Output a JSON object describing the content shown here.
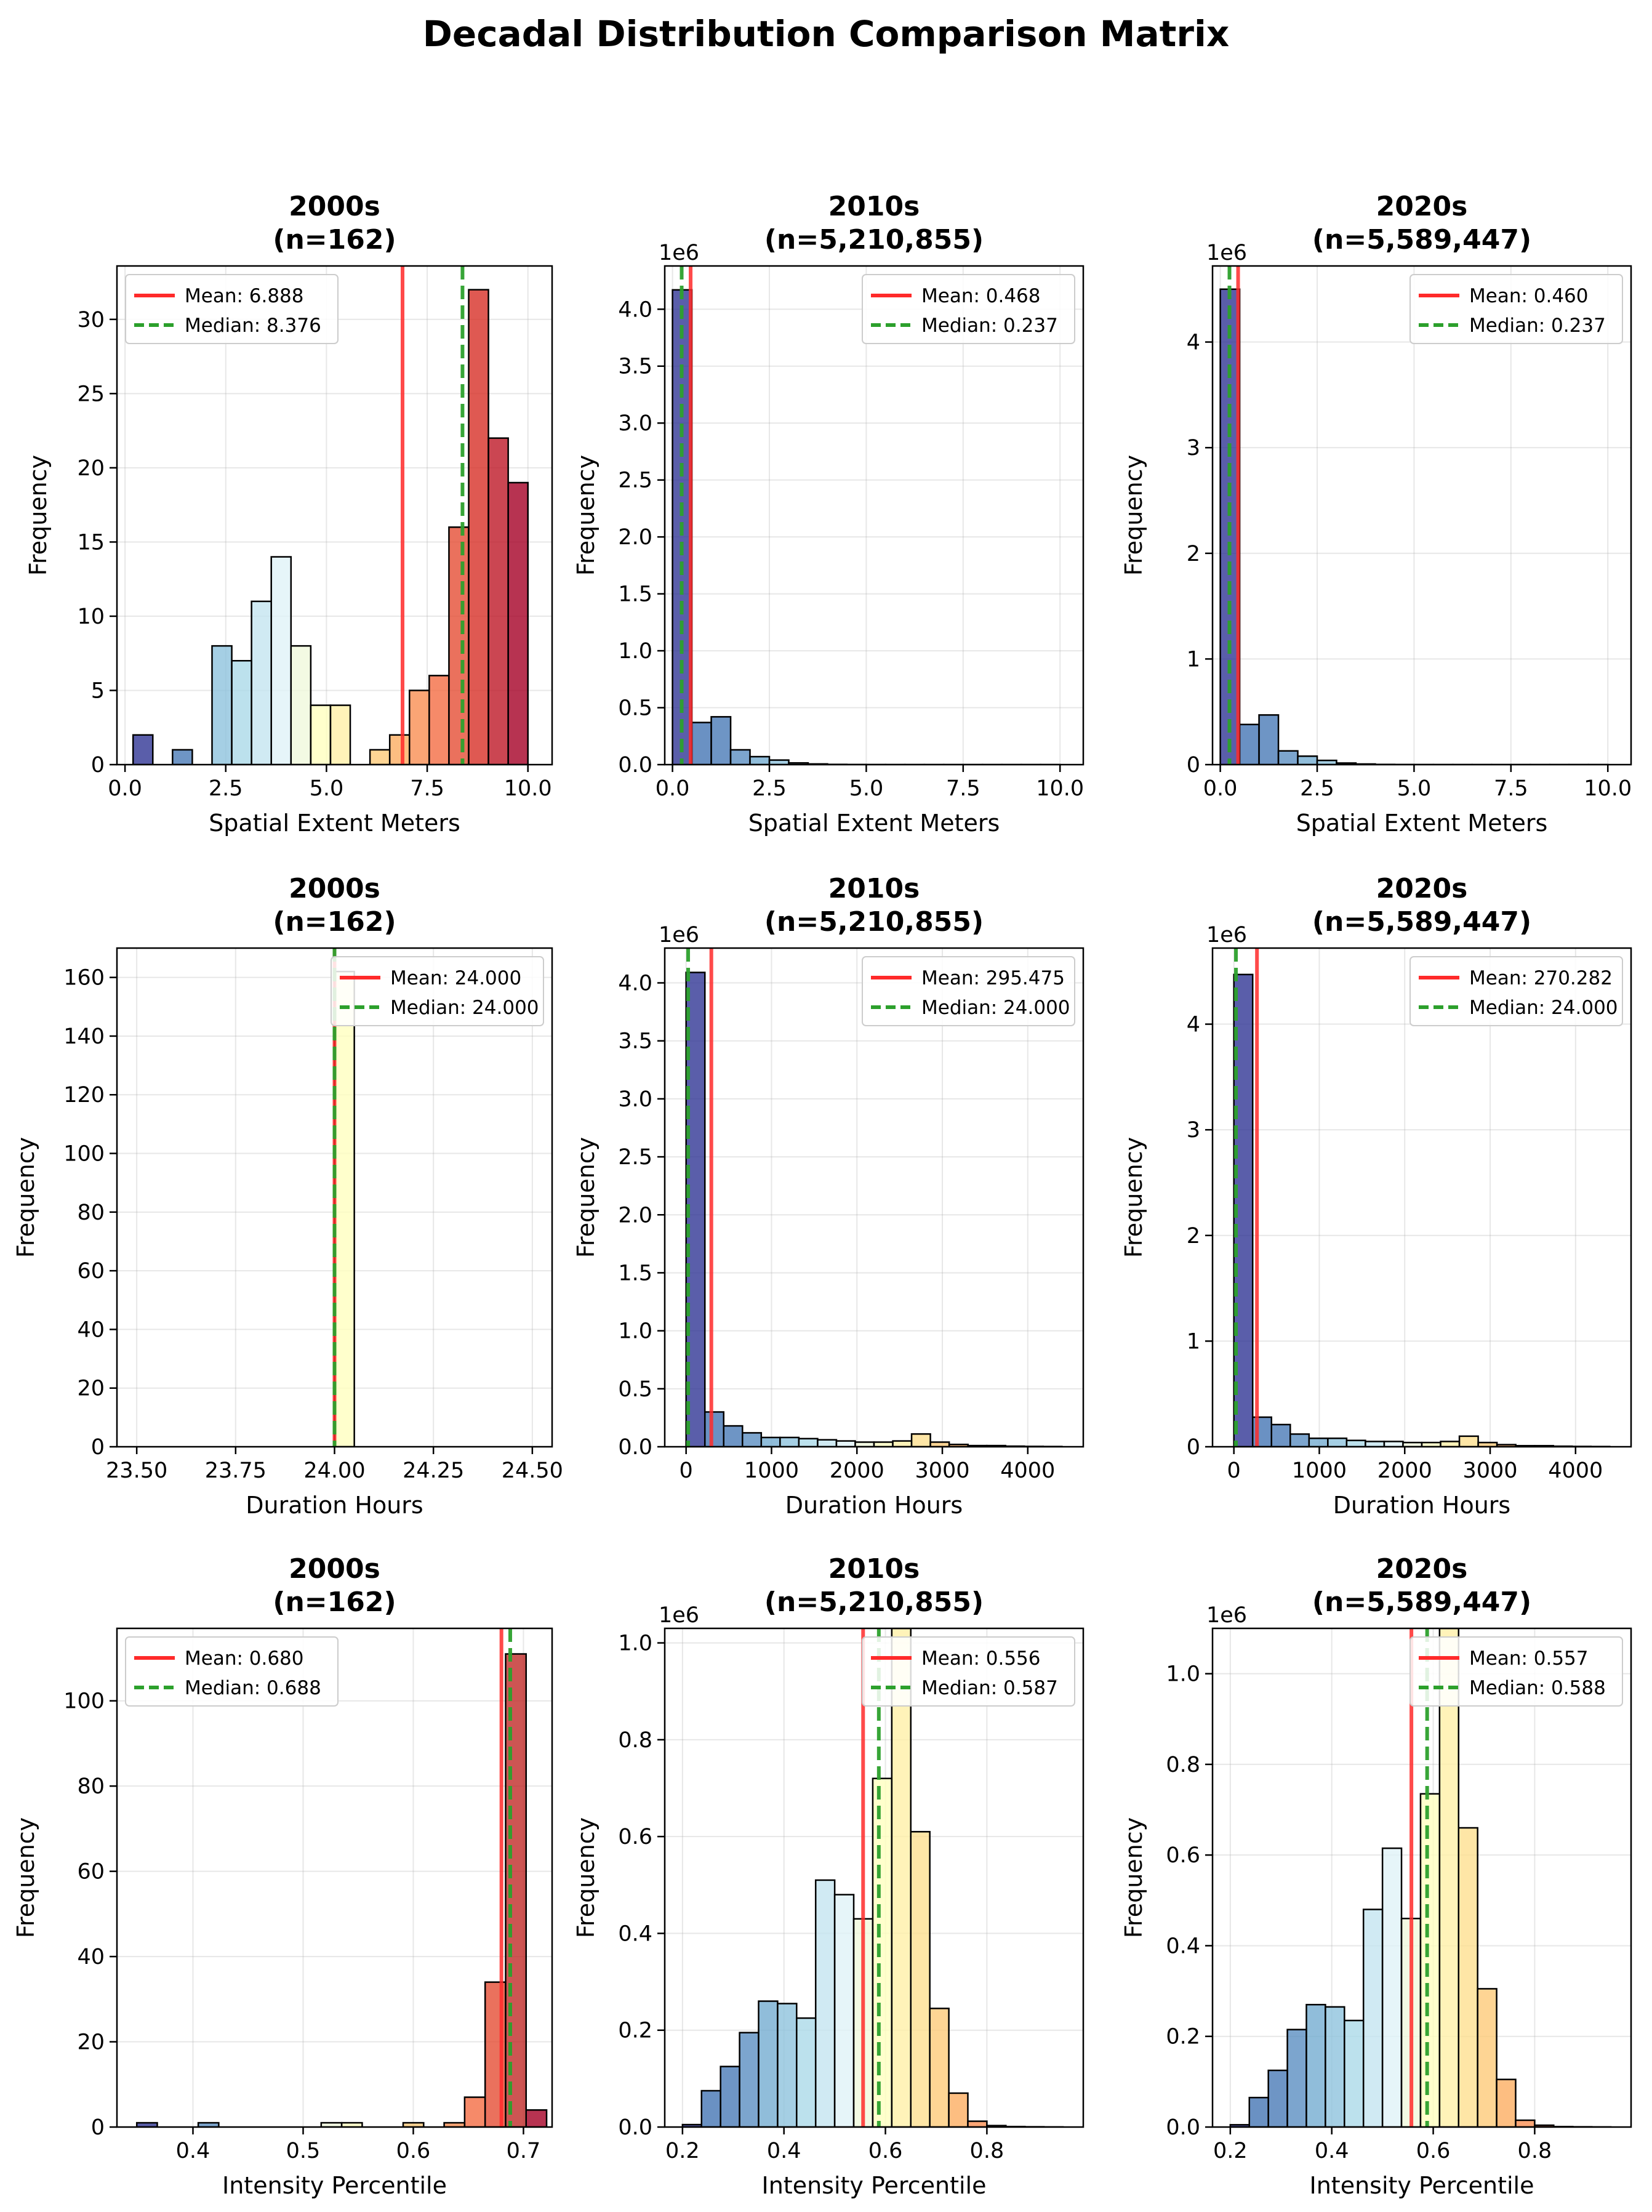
{
  "title": "Decadal Distribution Comparison Matrix",
  "colors": {
    "mean": "#ff2a2a",
    "median": "#2ca02c",
    "colormap": [
      "#313695",
      "#4575b4",
      "#74add1",
      "#abd9e9",
      "#e0f3f8",
      "#ffffbf",
      "#fee090",
      "#fdae61",
      "#f46d43",
      "#d73027",
      "#a50026"
    ]
  },
  "chart_data": [
    {
      "type": "bar",
      "decade": "2000s",
      "n": "(n=162)",
      "xlabel": "Spatial Extent Meters",
      "ylabel": "Frequency",
      "offset": "",
      "xlim": [
        -0.2,
        10.6
      ],
      "ylim": [
        0,
        33.6
      ],
      "xticks": [
        0,
        2.5,
        5,
        7.5,
        10
      ],
      "xtick_labels": [
        "0.0",
        "2.5",
        "5.0",
        "7.5",
        "10.0"
      ],
      "yticks": [
        0,
        5,
        10,
        15,
        20,
        25,
        30
      ],
      "ytick_labels": [
        "0",
        "5",
        "10",
        "15",
        "20",
        "25",
        "30"
      ],
      "bin_edges": [
        0.2,
        0.69,
        1.18,
        1.67,
        2.16,
        2.65,
        3.14,
        3.63,
        4.12,
        4.61,
        5.1,
        5.59,
        6.08,
        6.57,
        7.06,
        7.55,
        8.04,
        8.53,
        9.02,
        9.51,
        10.0
      ],
      "values": [
        2,
        0,
        1,
        0,
        8,
        7,
        11,
        14,
        8,
        4,
        4,
        0,
        1,
        2,
        5,
        6,
        16,
        32,
        22,
        19
      ],
      "colors": [
        "#313695",
        "#3e5ba8",
        "#4a7ab7",
        "#74add1",
        "#8fc3dd",
        "#abd9e9",
        "#c4e5f0",
        "#e0f3f8",
        "#f0f9dc",
        "#ffffbf",
        "#fff0a8",
        "#fee090",
        "#feca79",
        "#fdae61",
        "#f98e52",
        "#f46d43",
        "#e54e35",
        "#d73027",
        "#be1827",
        "#a50026"
      ],
      "mean": 6.888,
      "median": 8.376,
      "legend_pos": "upper-left",
      "legend": [
        "Mean: 6.888",
        "Median: 8.376"
      ]
    },
    {
      "type": "bar",
      "decade": "2010s",
      "n": "(n=5,210,855)",
      "xlabel": "Spatial Extent Meters",
      "ylabel": "Frequency",
      "offset": "1e6",
      "xlim": [
        -0.2,
        10.6
      ],
      "ylim": [
        0,
        4.38
      ],
      "xticks": [
        0,
        2.5,
        5,
        7.5,
        10
      ],
      "xtick_labels": [
        "0.0",
        "2.5",
        "5.0",
        "7.5",
        "10.0"
      ],
      "yticks": [
        0,
        0.5,
        1,
        1.5,
        2,
        2.5,
        3,
        3.5,
        4
      ],
      "ytick_labels": [
        "0.0",
        "0.5",
        "1.0",
        "1.5",
        "2.0",
        "2.5",
        "3.0",
        "3.5",
        "4.0"
      ],
      "bin_edges": [
        0.0,
        0.5,
        1.0,
        1.5,
        2.0,
        2.5,
        3.0,
        3.5,
        4.0,
        4.5,
        5.0,
        5.5,
        6.0,
        6.5,
        7.0,
        7.5,
        8.0,
        8.5,
        9.0,
        9.5,
        10.0
      ],
      "values": [
        4.17,
        0.37,
        0.42,
        0.13,
        0.07,
        0.04,
        0.015,
        0.006,
        0.002,
        0.001,
        0.0005,
        0.0003,
        0.0002,
        0.0001,
        0.0001,
        0.0001,
        0.0001,
        0.0001,
        0.0001,
        0.0001
      ],
      "colors": [
        "#313695",
        "#4575b4",
        "#4a7ab7",
        "#5b8ec2",
        "#74add1",
        "#8fc3dd",
        "#abd9e9",
        "#c4e5f0",
        "#e0f3f8",
        "#f0f9dc",
        "#ffffbf",
        "#fff0a8",
        "#fee090",
        "#feca79",
        "#fdae61",
        "#f98e52",
        "#f46d43",
        "#e54e35",
        "#d73027",
        "#a50026"
      ],
      "mean": 0.468,
      "median": 0.237,
      "legend_pos": "upper-right",
      "legend": [
        "Mean: 0.468",
        "Median: 0.237"
      ]
    },
    {
      "type": "bar",
      "decade": "2020s",
      "n": "(n=5,589,447)",
      "xlabel": "Spatial Extent Meters",
      "ylabel": "Frequency",
      "offset": "1e6",
      "xlim": [
        -0.2,
        10.6
      ],
      "ylim": [
        0,
        4.72
      ],
      "xticks": [
        0,
        2.5,
        5,
        7.5,
        10
      ],
      "xtick_labels": [
        "0.0",
        "2.5",
        "5.0",
        "7.5",
        "10.0"
      ],
      "yticks": [
        0,
        1,
        2,
        3,
        4
      ],
      "ytick_labels": [
        "0",
        "1",
        "2",
        "3",
        "4"
      ],
      "bin_edges": [
        0.0,
        0.5,
        1.0,
        1.5,
        2.0,
        2.5,
        3.0,
        3.5,
        4.0,
        4.5,
        5.0,
        5.5,
        6.0,
        6.5,
        7.0,
        7.5,
        8.0,
        8.5,
        9.0,
        9.5,
        10.0
      ],
      "values": [
        4.5,
        0.38,
        0.47,
        0.13,
        0.08,
        0.04,
        0.015,
        0.006,
        0.002,
        0.001,
        0.0005,
        0.0003,
        0.0002,
        0.0001,
        0.0001,
        0.0001,
        0.0001,
        0.0001,
        0.0001,
        0.0001
      ],
      "colors": [
        "#313695",
        "#4575b4",
        "#4a7ab7",
        "#5b8ec2",
        "#74add1",
        "#8fc3dd",
        "#abd9e9",
        "#c4e5f0",
        "#e0f3f8",
        "#f0f9dc",
        "#ffffbf",
        "#fff0a8",
        "#fee090",
        "#feca79",
        "#fdae61",
        "#f98e52",
        "#f46d43",
        "#e54e35",
        "#d73027",
        "#a50026"
      ],
      "mean": 0.46,
      "median": 0.237,
      "legend_pos": "upper-right",
      "legend": [
        "Mean: 0.460",
        "Median: 0.237"
      ]
    },
    {
      "type": "bar",
      "decade": "2000s",
      "n": "(n=162)",
      "xlabel": "Duration Hours",
      "ylabel": "Frequency",
      "offset": "",
      "xlim": [
        23.45,
        24.55
      ],
      "ylim": [
        0,
        170
      ],
      "xticks": [
        23.5,
        23.75,
        24.0,
        24.25,
        24.5
      ],
      "xtick_labels": [
        "23.50",
        "23.75",
        "24.00",
        "24.25",
        "24.50"
      ],
      "yticks": [
        0,
        20,
        40,
        60,
        80,
        100,
        120,
        140,
        160
      ],
      "ytick_labels": [
        "0",
        "20",
        "40",
        "60",
        "80",
        "100",
        "120",
        "140",
        "160"
      ],
      "bin_edges": [
        24.0,
        24.05
      ],
      "values": [
        162
      ],
      "colors": [
        "#ffffbf"
      ],
      "mean": 24.0,
      "median": 24.0,
      "legend_pos": "upper-right",
      "legend": [
        "Mean: 24.000",
        "Median: 24.000"
      ]
    },
    {
      "type": "bar",
      "decade": "2010s",
      "n": "(n=5,210,855)",
      "xlabel": "Duration Hours",
      "ylabel": "Frequency",
      "offset": "1e6",
      "xlim": [
        -250,
        4650
      ],
      "ylim": [
        0,
        4.3
      ],
      "xticks": [
        0,
        1000,
        2000,
        3000,
        4000
      ],
      "xtick_labels": [
        "0",
        "1000",
        "2000",
        "3000",
        "4000"
      ],
      "yticks": [
        0,
        0.5,
        1,
        1.5,
        2,
        2.5,
        3,
        3.5,
        4
      ],
      "ytick_labels": [
        "0.0",
        "0.5",
        "1.0",
        "1.5",
        "2.0",
        "2.5",
        "3.0",
        "3.5",
        "4.0"
      ],
      "bin_edges": [
        0,
        220,
        440,
        660,
        880,
        1100,
        1320,
        1540,
        1760,
        1980,
        2200,
        2420,
        2640,
        2860,
        3080,
        3300,
        3520,
        3740,
        3960,
        4180,
        4400
      ],
      "values": [
        4.09,
        0.3,
        0.18,
        0.12,
        0.08,
        0.08,
        0.07,
        0.06,
        0.05,
        0.04,
        0.04,
        0.05,
        0.11,
        0.04,
        0.02,
        0.01,
        0.01,
        0.005,
        0.003,
        0.002
      ],
      "colors": [
        "#313695",
        "#4575b4",
        "#4a7ab7",
        "#5b8ec2",
        "#74add1",
        "#8fc3dd",
        "#abd9e9",
        "#c4e5f0",
        "#e0f3f8",
        "#f0f9dc",
        "#ffffbf",
        "#fff0a8",
        "#fee090",
        "#feca79",
        "#fdae61",
        "#f98e52",
        "#f46d43",
        "#e54e35",
        "#d73027",
        "#a50026"
      ],
      "mean": 295.475,
      "median": 24.0,
      "legend_pos": "upper-right",
      "legend": [
        "Mean: 295.475",
        "Median: 24.000"
      ]
    },
    {
      "type": "bar",
      "decade": "2020s",
      "n": "(n=5,589,447)",
      "xlabel": "Duration Hours",
      "ylabel": "Frequency",
      "offset": "1e6",
      "xlim": [
        -250,
        4650
      ],
      "ylim": [
        0,
        4.72
      ],
      "xticks": [
        0,
        1000,
        2000,
        3000,
        4000
      ],
      "xtick_labels": [
        "0",
        "1000",
        "2000",
        "3000",
        "4000"
      ],
      "yticks": [
        0,
        1,
        2,
        3,
        4
      ],
      "ytick_labels": [
        "0",
        "1",
        "2",
        "3",
        "4"
      ],
      "bin_edges": [
        0,
        220,
        440,
        660,
        880,
        1100,
        1320,
        1540,
        1760,
        1980,
        2200,
        2420,
        2640,
        2860,
        3080,
        3300,
        3520,
        3740,
        3960,
        4180,
        4400
      ],
      "values": [
        4.47,
        0.28,
        0.21,
        0.12,
        0.08,
        0.08,
        0.06,
        0.05,
        0.05,
        0.04,
        0.04,
        0.05,
        0.1,
        0.04,
        0.02,
        0.01,
        0.01,
        0.005,
        0.003,
        0.002
      ],
      "colors": [
        "#313695",
        "#4575b4",
        "#4a7ab7",
        "#5b8ec2",
        "#74add1",
        "#8fc3dd",
        "#abd9e9",
        "#c4e5f0",
        "#e0f3f8",
        "#f0f9dc",
        "#ffffbf",
        "#fff0a8",
        "#fee090",
        "#feca79",
        "#fdae61",
        "#f98e52",
        "#f46d43",
        "#e54e35",
        "#d73027",
        "#a50026"
      ],
      "mean": 270.282,
      "median": 24.0,
      "legend_pos": "upper-right",
      "legend": [
        "Mean: 270.282",
        "Median: 24.000"
      ]
    },
    {
      "type": "bar",
      "decade": "2000s",
      "n": "(n=162)",
      "xlabel": "Intensity Percentile",
      "ylabel": "Frequency",
      "offset": "",
      "xlim": [
        0.331,
        0.726
      ],
      "ylim": [
        0,
        117
      ],
      "xticks": [
        0.4,
        0.5,
        0.6,
        0.7
      ],
      "xtick_labels": [
        "0.4",
        "0.5",
        "0.6",
        "0.7"
      ],
      "yticks": [
        0,
        20,
        40,
        60,
        80,
        100
      ],
      "ytick_labels": [
        "0",
        "20",
        "40",
        "60",
        "80",
        "100"
      ],
      "bin_edges": [
        0.349,
        0.3676,
        0.3862,
        0.4048,
        0.4234,
        0.442,
        0.4606,
        0.4792,
        0.4978,
        0.5164,
        0.535,
        0.5536,
        0.5722,
        0.5908,
        0.6094,
        0.628,
        0.6466,
        0.6652,
        0.6838,
        0.7024,
        0.721
      ],
      "values": [
        1,
        0,
        0,
        1,
        0,
        0,
        0,
        0,
        0,
        1,
        1,
        0,
        0,
        1,
        0,
        1,
        7,
        34,
        111,
        4
      ],
      "colors": [
        "#313695",
        "#3e5ba8",
        "#4a7ab7",
        "#5b8ec2",
        "#74add1",
        "#8fc3dd",
        "#abd9e9",
        "#c4e5f0",
        "#e0f3f8",
        "#f0f9dc",
        "#ffffbf",
        "#fff0a8",
        "#fee090",
        "#feca79",
        "#fdae61",
        "#f98e52",
        "#f46d43",
        "#e54e35",
        "#c02a28",
        "#a50026"
      ],
      "mean": 0.68,
      "median": 0.688,
      "legend_pos": "upper-left",
      "legend": [
        "Mean: 0.680",
        "Median: 0.688"
      ]
    },
    {
      "type": "bar",
      "decade": "2010s",
      "n": "(n=5,210,855)",
      "xlabel": "Intensity Percentile",
      "ylabel": "Frequency",
      "offset": "1e6",
      "xlim": [
        0.165,
        0.99
      ],
      "ylim": [
        0,
        1.03
      ],
      "xticks": [
        0.2,
        0.4,
        0.6,
        0.8
      ],
      "xtick_labels": [
        "0.2",
        "0.4",
        "0.6",
        "0.8"
      ],
      "yticks": [
        0,
        0.2,
        0.4,
        0.6,
        0.8,
        1.0
      ],
      "ytick_labels": [
        "0.0",
        "0.2",
        "0.4",
        "0.6",
        "0.8",
        "1.0"
      ],
      "bin_edges": [
        0.2,
        0.2375,
        0.275,
        0.3125,
        0.35,
        0.3875,
        0.425,
        0.4625,
        0.5,
        0.5375,
        0.575,
        0.6125,
        0.65,
        0.6875,
        0.725,
        0.7625,
        0.8,
        0.8375,
        0.875,
        0.9125,
        0.95
      ],
      "values": [
        0.005,
        0.075,
        0.125,
        0.195,
        0.26,
        0.255,
        0.225,
        0.51,
        0.48,
        0.43,
        0.72,
        1.2,
        0.61,
        0.245,
        0.07,
        0.012,
        0.003,
        0.001,
        0.0005,
        0.0002
      ],
      "colors": [
        "#313695",
        "#4575b4",
        "#4a7ab7",
        "#5b8ec2",
        "#74add1",
        "#8fc3dd",
        "#abd9e9",
        "#c4e5f0",
        "#e0f3f8",
        "#f0f9dc",
        "#ffffbf",
        "#fff0a8",
        "#fee090",
        "#feca79",
        "#fdae61",
        "#f98e52",
        "#f46d43",
        "#e54e35",
        "#d73027",
        "#a50026"
      ],
      "mean": 0.556,
      "median": 0.587,
      "legend_pos": "upper-right",
      "legend": [
        "Mean: 0.556",
        "Median: 0.587"
      ]
    },
    {
      "type": "bar",
      "decade": "2020s",
      "n": "(n=5,589,447)",
      "xlabel": "Intensity Percentile",
      "ylabel": "Frequency",
      "offset": "1e6",
      "xlim": [
        0.165,
        0.99
      ],
      "ylim": [
        0,
        1.1
      ],
      "xticks": [
        0.2,
        0.4,
        0.6,
        0.8
      ],
      "xtick_labels": [
        "0.2",
        "0.4",
        "0.6",
        "0.8"
      ],
      "yticks": [
        0,
        0.2,
        0.4,
        0.6,
        0.8,
        1.0
      ],
      "ytick_labels": [
        "0.0",
        "0.2",
        "0.4",
        "0.6",
        "0.8",
        "1.0"
      ],
      "bin_edges": [
        0.2,
        0.2375,
        0.275,
        0.3125,
        0.35,
        0.3875,
        0.425,
        0.4625,
        0.5,
        0.5375,
        0.575,
        0.6125,
        0.65,
        0.6875,
        0.725,
        0.7625,
        0.8,
        0.8375,
        0.875,
        0.9125,
        0.95
      ],
      "values": [
        0.005,
        0.065,
        0.125,
        0.215,
        0.27,
        0.265,
        0.235,
        0.48,
        0.615,
        0.46,
        0.735,
        1.2,
        0.66,
        0.305,
        0.105,
        0.015,
        0.004,
        0.001,
        0.0005,
        0.0002
      ],
      "colors": [
        "#313695",
        "#4575b4",
        "#4a7ab7",
        "#5b8ec2",
        "#74add1",
        "#8fc3dd",
        "#abd9e9",
        "#c4e5f0",
        "#e0f3f8",
        "#f0f9dc",
        "#ffffbf",
        "#fff0a8",
        "#fee090",
        "#feca79",
        "#fdae61",
        "#f98e52",
        "#f46d43",
        "#e54e35",
        "#d73027",
        "#a50026"
      ],
      "mean": 0.557,
      "median": 0.588,
      "legend_pos": "upper-right",
      "legend": [
        "Mean: 0.557",
        "Median: 0.588"
      ]
    }
  ]
}
